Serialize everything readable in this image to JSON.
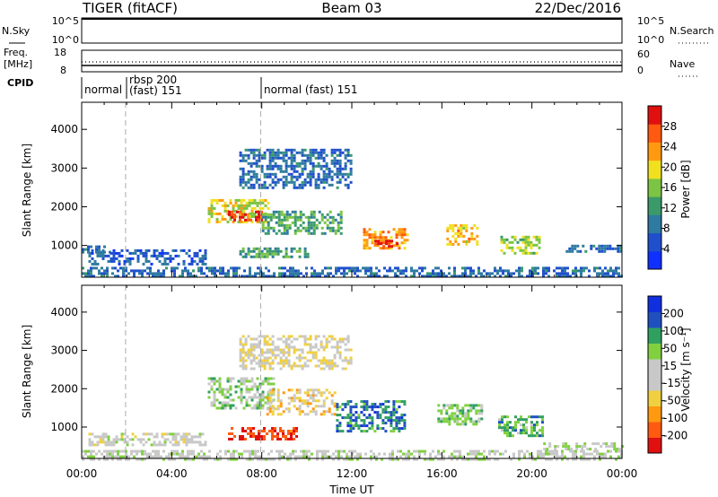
{
  "header": {
    "radar": "TIGER (fitACF)",
    "beam": "Beam 03",
    "date": "22/Dec/2016"
  },
  "sky_panel": {
    "left_label": "N.Sky",
    "right_label": "N.Search",
    "left_ticks": [
      "10^5",
      "10^0"
    ],
    "right_ticks": [
      "10^5",
      "10^0"
    ]
  },
  "freq_panel": {
    "left_label_1": "Freq.",
    "left_label_2": "[MHz]",
    "right_label": "Nave",
    "left_ticks": [
      "18",
      "8"
    ],
    "right_ticks": [
      "60",
      "0"
    ]
  },
  "cpid_panel": {
    "label": "CPID",
    "segments": [
      {
        "label": "normal",
        "start_hour": 0
      },
      {
        "label_1": "rbsp 200",
        "label_2": "(fast) 151",
        "start_hour": 1.95
      },
      {
        "label": "normal (fast) 151",
        "start_hour": 7.95
      }
    ]
  },
  "x_axis": {
    "label": "Time UT",
    "ticks": [
      "00:00",
      "04:00",
      "08:00",
      "12:00",
      "16:00",
      "20:00",
      "00:00"
    ],
    "range_hours": [
      0,
      24
    ]
  },
  "y_axis": {
    "label": "Slant Range [km]",
    "ticks": [
      "1000",
      "2000",
      "3000",
      "4000"
    ],
    "range_km": [
      180,
      4700
    ]
  },
  "colors": {
    "power_scale": [
      "#1030ff",
      "#1f4fcc",
      "#2e7aa0",
      "#3a9a6a",
      "#7cc443",
      "#f0e020",
      "#ff9a10",
      "#ff5a10",
      "#e01010"
    ],
    "velocity_scale": [
      "#e01010",
      "#ff5a10",
      "#ff9a10",
      "#f0d040",
      "#c8c8c8",
      "#c8c8c8",
      "#80d040",
      "#30a060",
      "#2050c0",
      "#1030e0"
    ]
  },
  "colorbars": {
    "power": {
      "label": "Power [dB]",
      "ticks": [
        "28",
        "24",
        "20",
        "16",
        "12",
        "8",
        "4"
      ]
    },
    "velocity": {
      "label": "Velocity [m s⁻¹]",
      "ticks": [
        "200",
        "100",
        "50",
        "15",
        "-15",
        "-50",
        "-100",
        "-200"
      ]
    }
  },
  "chart_data": [
    {
      "type": "heatmap",
      "quantity": "power",
      "units": "dB",
      "x_units": "hours UT",
      "y_units": "km",
      "xlim": [
        0,
        24
      ],
      "ylim": [
        180,
        4700
      ],
      "clim": [
        0,
        30
      ],
      "regions": [
        {
          "t0": 0.0,
          "t1": 24.0,
          "r0": 180,
          "r1": 450,
          "value": 7
        },
        {
          "t0": 0.0,
          "t1": 1.2,
          "r0": 820,
          "r1": 1000,
          "value": 8
        },
        {
          "t0": 0.3,
          "t1": 5.5,
          "r0": 500,
          "r1": 900,
          "value": 6
        },
        {
          "t0": 5.6,
          "t1": 8.3,
          "r0": 1600,
          "r1": 2200,
          "value": 18
        },
        {
          "t0": 6.5,
          "t1": 8.0,
          "r0": 1650,
          "r1": 1900,
          "value": 26
        },
        {
          "t0": 7.0,
          "t1": 10.0,
          "r0": 700,
          "r1": 950,
          "value": 12
        },
        {
          "t0": 8.0,
          "t1": 11.5,
          "r0": 1300,
          "r1": 1900,
          "value": 12
        },
        {
          "t0": 12.5,
          "t1": 14.5,
          "r0": 900,
          "r1": 1450,
          "value": 22
        },
        {
          "t0": 13.0,
          "t1": 14.0,
          "r0": 960,
          "r1": 1150,
          "value": 28
        },
        {
          "t0": 16.2,
          "t1": 17.6,
          "r0": 1050,
          "r1": 1550,
          "value": 20
        },
        {
          "t0": 18.6,
          "t1": 20.3,
          "r0": 780,
          "r1": 1250,
          "value": 16
        },
        {
          "t0": 21.5,
          "t1": 24.0,
          "r0": 880,
          "r1": 1020,
          "value": 7
        },
        {
          "t0": 7.0,
          "t1": 12.0,
          "r0": 2500,
          "r1": 3500,
          "value": 7
        }
      ]
    },
    {
      "type": "heatmap",
      "quantity": "velocity",
      "units": "m s^-1",
      "x_units": "hours UT",
      "y_units": "km",
      "xlim": [
        0,
        24
      ],
      "ylim": [
        180,
        4700
      ],
      "clim": [
        -250,
        250
      ],
      "regions": [
        {
          "t0": 0.0,
          "t1": 24.0,
          "r0": 180,
          "r1": 400,
          "value": 20
        },
        {
          "t0": 0.3,
          "t1": 5.5,
          "r0": 500,
          "r1": 850,
          "value": 0
        },
        {
          "t0": 5.6,
          "t1": 8.5,
          "r0": 1500,
          "r1": 2300,
          "value": 60
        },
        {
          "t0": 6.5,
          "t1": 9.5,
          "r0": 700,
          "r1": 1000,
          "value": -200
        },
        {
          "t0": 8.2,
          "t1": 11.3,
          "r0": 1300,
          "r1": 2000,
          "value": -60
        },
        {
          "t0": 11.3,
          "t1": 14.3,
          "r0": 900,
          "r1": 1700,
          "value": 150
        },
        {
          "t0": 15.8,
          "t1": 17.8,
          "r0": 1050,
          "r1": 1600,
          "value": 80
        },
        {
          "t0": 18.5,
          "t1": 20.5,
          "r0": 780,
          "r1": 1300,
          "value": 100
        },
        {
          "t0": 20.5,
          "t1": 24.0,
          "r0": 400,
          "r1": 600,
          "value": 30
        },
        {
          "t0": 7.0,
          "t1": 12.0,
          "r0": 2500,
          "r1": 3400,
          "value": -40
        }
      ]
    }
  ]
}
